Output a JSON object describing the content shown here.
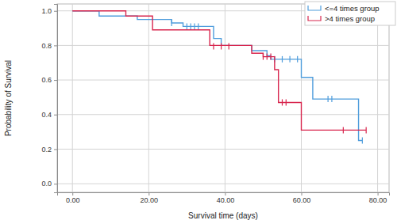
{
  "chart_data": {
    "type": "step",
    "x_label": "Survival time (days)",
    "y_label": "Probability of Survival",
    "xlim": [
      -4,
      83
    ],
    "ylim": [
      -0.05,
      1.04
    ],
    "xticks": [
      {
        "value": 0,
        "label": "0.00"
      },
      {
        "value": 20,
        "label": "20.00"
      },
      {
        "value": 40,
        "label": "40.00"
      },
      {
        "value": 60,
        "label": "60.00"
      },
      {
        "value": 80,
        "label": "80.00"
      }
    ],
    "yticks": [
      {
        "value": 0,
        "label": "0.0"
      },
      0.2,
      0.4,
      0.6,
      0.8,
      {
        "value": 1,
        "label": "1.0"
      }
    ],
    "grid": true,
    "legend": "upper right",
    "series": [
      {
        "name": "<=4 times group",
        "color": "#4f9ddc",
        "x": [
          0,
          7,
          17,
          26,
          29,
          37,
          39,
          47,
          51,
          52,
          60,
          63,
          75,
          76
        ],
        "values": [
          1.0,
          0.97,
          0.95,
          0.93,
          0.91,
          0.84,
          0.8,
          0.77,
          0.74,
          0.72,
          0.615,
          0.49,
          0.25,
          0.25
        ],
        "censored_x": [
          26,
          30,
          31,
          32,
          33,
          53,
          55,
          57,
          59,
          67,
          68,
          76
        ],
        "censored_values": [
          0.93,
          0.91,
          0.91,
          0.91,
          0.91,
          0.72,
          0.72,
          0.72,
          0.72,
          0.49,
          0.49,
          0.25
        ]
      },
      {
        "name": ">4 times group",
        "color": "#d8264e",
        "x": [
          0,
          14,
          21,
          36,
          47,
          50,
          53,
          54,
          60,
          77
        ],
        "values": [
          1.0,
          0.97,
          0.89,
          0.8,
          0.755,
          0.735,
          0.66,
          0.47,
          0.31,
          0.31
        ],
        "censored_x": [
          37,
          39,
          41,
          50,
          51,
          52,
          55,
          56,
          71,
          77
        ],
        "censored_values": [
          0.795,
          0.795,
          0.795,
          0.735,
          0.735,
          0.735,
          0.47,
          0.47,
          0.31,
          0.31
        ]
      }
    ]
  }
}
